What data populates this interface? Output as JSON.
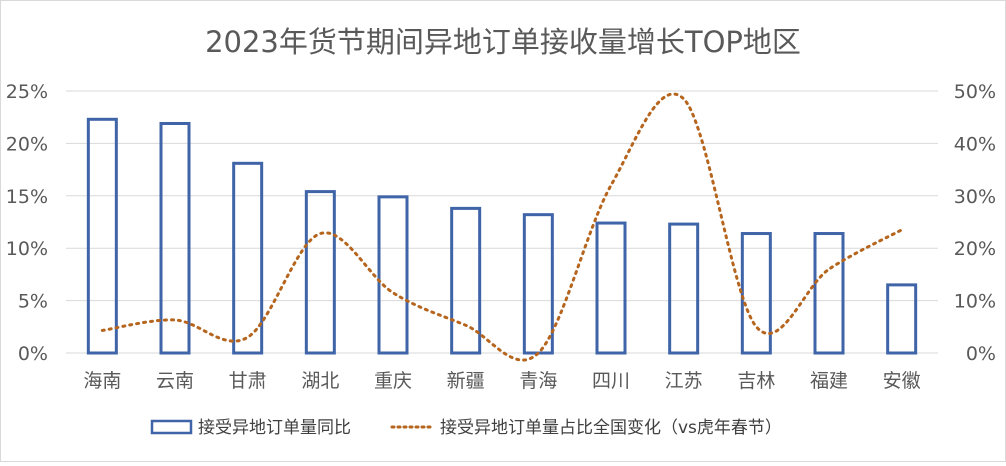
{
  "chart_data": {
    "type": "bar",
    "title": "2023年货节期间异地订单接收量增长TOP地区",
    "categories": [
      "海南",
      "云南",
      "甘肃",
      "湖北",
      "重庆",
      "新疆",
      "青海",
      "四川",
      "江苏",
      "吉林",
      "福建",
      "安徽"
    ],
    "series": [
      {
        "name": "接受异地订单量同比",
        "type": "bar",
        "axis": "left",
        "values": [
          22.3,
          21.9,
          18.1,
          15.4,
          14.9,
          13.8,
          13.2,
          12.4,
          12.3,
          11.4,
          11.4,
          6.5
        ],
        "color": "#3f64a8"
      },
      {
        "name": "接受异地订单量占比全国变化（vs虎年春节）",
        "type": "line",
        "style": "dotted",
        "axis": "right",
        "values": [
          4.3,
          6.3,
          3.0,
          22.8,
          11.5,
          5.3,
          0.0,
          32.0,
          48.5,
          5.0,
          16.0,
          23.5
        ],
        "color": "#b5651d"
      }
    ],
    "y_left": {
      "min": 0,
      "max": 25,
      "ticks": [
        "0%",
        "5%",
        "10%",
        "15%",
        "20%",
        "25%"
      ]
    },
    "y_right": {
      "min": 0,
      "max": 50,
      "ticks": [
        "0%",
        "10%",
        "20%",
        "30%",
        "40%",
        "50%"
      ]
    },
    "grid": true,
    "legend_position": "bottom"
  }
}
